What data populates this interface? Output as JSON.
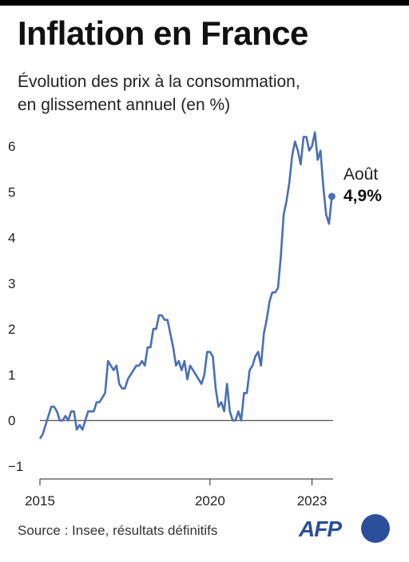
{
  "header": {
    "title": "Inflation en France",
    "subtitle_line1": "Évolution des prix à la consommation,",
    "subtitle_line2": "en glissement annuel (en %)"
  },
  "footer": {
    "source": "Source : Insee, résultats définitifs",
    "logo": "AFP"
  },
  "colors": {
    "line": "#4a6fb5",
    "axis": "#222222",
    "text": "#1f1f1f",
    "brand": "#2b4f9b"
  },
  "chart_data": {
    "type": "line",
    "title": "Inflation en France",
    "ylabel": "",
    "xlabel": "",
    "ylim": [
      -1,
      6
    ],
    "xlim": [
      2015.0,
      2023.62
    ],
    "yticks": [
      "6",
      "5",
      "4",
      "3",
      "2",
      "1",
      "0",
      "−1"
    ],
    "xticks": [
      "2015",
      "2020",
      "2023"
    ],
    "annotation": {
      "label": "Août",
      "value": "4,9%"
    },
    "series": [
      {
        "name": "",
        "x_start": "2015-01",
        "x_step": "1 month",
        "values": [
          -0.4,
          -0.3,
          -0.1,
          0.1,
          0.3,
          0.3,
          0.2,
          0.0,
          0.0,
          0.1,
          0.0,
          0.2,
          0.2,
          -0.2,
          -0.1,
          -0.2,
          0.0,
          0.2,
          0.2,
          0.2,
          0.4,
          0.4,
          0.5,
          0.6,
          1.3,
          1.2,
          1.1,
          1.2,
          0.8,
          0.7,
          0.7,
          0.9,
          1.0,
          1.1,
          1.2,
          1.2,
          1.3,
          1.2,
          1.6,
          1.6,
          2.0,
          2.0,
          2.3,
          2.3,
          2.2,
          2.2,
          1.9,
          1.6,
          1.2,
          1.3,
          1.1,
          1.3,
          0.9,
          1.2,
          1.1,
          1.0,
          0.9,
          0.8,
          1.0,
          1.5,
          1.5,
          1.4,
          0.7,
          0.3,
          0.4,
          0.2,
          0.8,
          0.2,
          0.0,
          0.0,
          0.2,
          0.0,
          0.6,
          0.6,
          1.1,
          1.2,
          1.4,
          1.5,
          1.2,
          1.9,
          2.2,
          2.6,
          2.8,
          2.8,
          2.9,
          3.6,
          4.5,
          4.8,
          5.2,
          5.8,
          6.1,
          5.9,
          5.6,
          6.2,
          6.2,
          5.9,
          6.0,
          6.3,
          5.7,
          5.9,
          5.1,
          4.5,
          4.3,
          4.9
        ]
      }
    ]
  }
}
